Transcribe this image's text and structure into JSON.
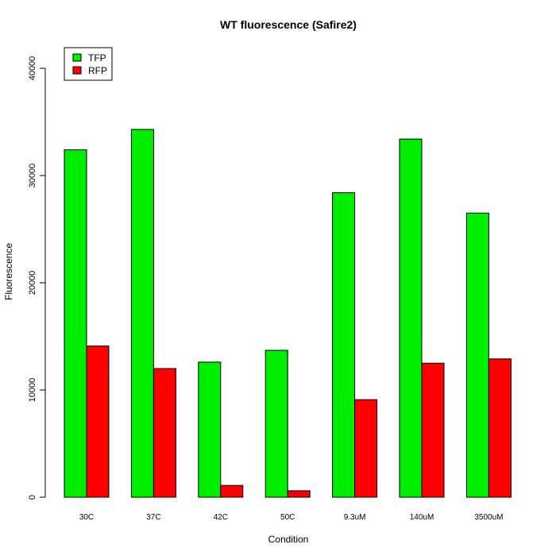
{
  "chart_data": {
    "type": "bar",
    "title": "WT fluorescence (Safire2)",
    "xlabel": "Condition",
    "ylabel": "Fluorescence",
    "categories": [
      "30C",
      "37C",
      "42C",
      "50C",
      "9.3uM",
      "140uM",
      "3500uM"
    ],
    "series": [
      {
        "name": "TFP",
        "color": "#00ee00",
        "values": [
          32400,
          34300,
          12600,
          13700,
          28400,
          33400,
          26500
        ]
      },
      {
        "name": "RFP",
        "color": "#ff0000",
        "values": [
          14100,
          12000,
          1100,
          600,
          9100,
          12500,
          12900
        ]
      }
    ],
    "ylim": [
      0,
      40000
    ],
    "yticks": [
      0,
      10000,
      20000,
      30000,
      40000
    ],
    "grid": false,
    "legend_position": "top-left"
  }
}
